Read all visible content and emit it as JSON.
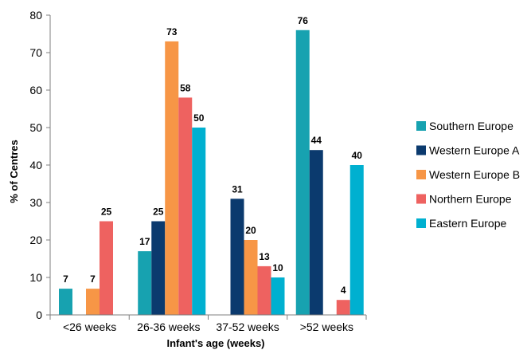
{
  "chart_data": {
    "type": "bar",
    "title": "",
    "xlabel": "Infant's age (weeks)",
    "ylabel": "% of Centres",
    "ylim": [
      0,
      80
    ],
    "yticks": [
      0,
      10,
      20,
      30,
      40,
      50,
      60,
      70,
      80
    ],
    "grid": false,
    "legend_position": "right",
    "categories": [
      "<26 weeks",
      "26-36 weeks",
      "37-52 weeks",
      ">52 weeks"
    ],
    "series": [
      {
        "name": "Southern Europe",
        "color": "#17A2B0",
        "values": [
          7,
          17,
          null,
          76
        ],
        "labels": [
          "7",
          "17",
          "",
          "76"
        ]
      },
      {
        "name": "Western Europe A",
        "color": "#0B3A6E",
        "values": [
          null,
          25,
          31,
          44
        ],
        "labels": [
          "",
          "25",
          "31",
          "44"
        ]
      },
      {
        "name": "Western Europe B",
        "color": "#F79646",
        "values": [
          7,
          73,
          20,
          null
        ],
        "labels": [
          "7",
          "73",
          "20",
          ""
        ]
      },
      {
        "name": "Northern Europe",
        "color": "#EE6260",
        "values": [
          25,
          58,
          13,
          4
        ],
        "labels": [
          "25",
          "58",
          "13",
          "4"
        ]
      },
      {
        "name": "Eastern Europe",
        "color": "#00B0D0",
        "values": [
          null,
          50,
          10,
          40
        ],
        "labels": [
          "",
          "50",
          "10",
          "40"
        ]
      }
    ]
  }
}
